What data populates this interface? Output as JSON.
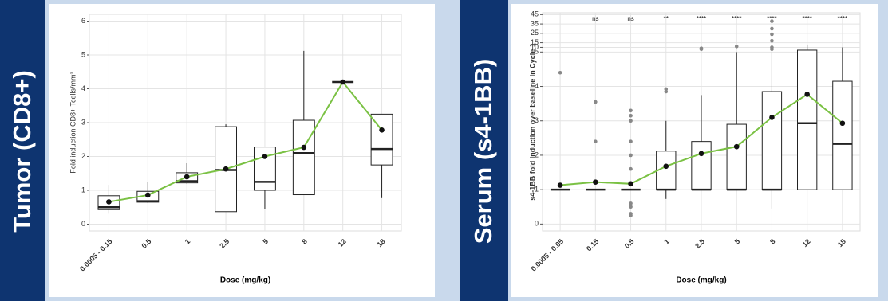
{
  "chart_data": [
    {
      "type": "box",
      "side_label": "Tumor (CD8+)",
      "x_label": "Dose (mg/kg)",
      "y_label": "Fold induction CD8+ Tcells/mm²",
      "categories": [
        "0.0005 - 0.15",
        "0.5",
        "1",
        "2.5",
        "5",
        "8",
        "12",
        "18"
      ],
      "ylim": [
        -0.2,
        6.2
      ],
      "yticks": [
        0,
        1,
        2,
        3,
        4,
        5,
        6
      ],
      "grid": true,
      "mean_color": "#7ac143",
      "boxes": [
        {
          "low": 0.31,
          "q1": 0.43,
          "median": 0.5,
          "q3": 0.84,
          "high": 1.16,
          "outliers": []
        },
        {
          "low": 0.63,
          "q1": 0.65,
          "median": 0.68,
          "q3": 0.97,
          "high": 1.25,
          "outliers": []
        },
        {
          "low": 1.2,
          "q1": 1.22,
          "median": 1.27,
          "q3": 1.52,
          "high": 1.8,
          "outliers": []
        },
        {
          "low": 0.37,
          "q1": 0.37,
          "median": 1.6,
          "q3": 2.88,
          "high": 2.95,
          "outliers": []
        },
        {
          "low": 0.45,
          "q1": 1.0,
          "median": 1.25,
          "q3": 2.28,
          "high": 2.28,
          "outliers": []
        },
        {
          "low": 0.87,
          "q1": 0.87,
          "median": 2.1,
          "q3": 3.07,
          "high": 5.12,
          "outliers": []
        },
        {
          "low": 4.2,
          "q1": 4.2,
          "median": 4.2,
          "q3": 4.2,
          "high": 4.2,
          "outliers": []
        },
        {
          "low": 0.77,
          "q1": 1.75,
          "median": 2.22,
          "q3": 3.25,
          "high": 3.25,
          "outliers": []
        }
      ],
      "means": [
        0.66,
        0.86,
        1.4,
        1.63,
        2.0,
        2.27,
        4.2,
        2.78
      ]
    },
    {
      "type": "box",
      "side_label": "Serum (s4-1BB)",
      "x_label": "Dose (mg/kg)",
      "y_label": "s4-1BB fold induction over baseline in Cycle 1",
      "categories": [
        "0.0005 - 0.05",
        "0.15",
        "0.5",
        "1",
        "2.5",
        "5",
        "8",
        "12",
        "18"
      ],
      "ylim": [
        -0.2,
        47
      ],
      "y_break": 5,
      "yticks": [
        0,
        1,
        2,
        3,
        4,
        5,
        10,
        15,
        25,
        35,
        45
      ],
      "grid": true,
      "mean_color": "#7ac143",
      "annotations": [
        null,
        "ns",
        "ns",
        "**",
        "****",
        "****",
        "****",
        "****",
        "****"
      ],
      "boxes": [
        {
          "low": 1.0,
          "q1": 1.0,
          "median": 1.0,
          "q3": 1.0,
          "high": 1.0,
          "outliers": [
            4.4
          ]
        },
        {
          "low": 1.0,
          "q1": 1.0,
          "median": 1.0,
          "q3": 1.0,
          "high": 1.0,
          "outliers": [
            2.4,
            3.55
          ]
        },
        {
          "low": 1.0,
          "q1": 1.0,
          "median": 1.0,
          "q3": 1.0,
          "high": 1.0,
          "outliers": [
            0.25,
            0.3,
            0.5,
            0.6,
            1.6,
            2.0,
            2.4,
            3.0,
            3.15,
            3.3
          ]
        },
        {
          "low": 0.73,
          "q1": 1.0,
          "median": 1.0,
          "q3": 2.12,
          "high": 3.0,
          "outliers": [
            3.85,
            3.92
          ]
        },
        {
          "low": 1.0,
          "q1": 1.0,
          "median": 1.0,
          "q3": 2.4,
          "high": 3.75,
          "outliers": [
            8,
            9
          ]
        },
        {
          "low": 1.0,
          "q1": 1.0,
          "median": 1.0,
          "q3": 2.9,
          "high": 5.0,
          "outliers": [
            11
          ]
        },
        {
          "low": 0.45,
          "q1": 1.0,
          "median": 1.0,
          "q3": 3.85,
          "high": 5.0,
          "outliers": [
            8,
            10,
            17,
            24,
            30,
            38
          ]
        },
        {
          "low": 1.0,
          "q1": 1.0,
          "median": 2.93,
          "q3": 7,
          "high": 13,
          "outliers": []
        },
        {
          "low": 1.0,
          "q1": 1.0,
          "median": 2.33,
          "q3": 4.15,
          "high": 10,
          "outliers": []
        }
      ],
      "means": [
        1.13,
        1.22,
        1.17,
        1.68,
        2.05,
        2.25,
        3.1,
        3.77,
        2.93
      ]
    }
  ]
}
